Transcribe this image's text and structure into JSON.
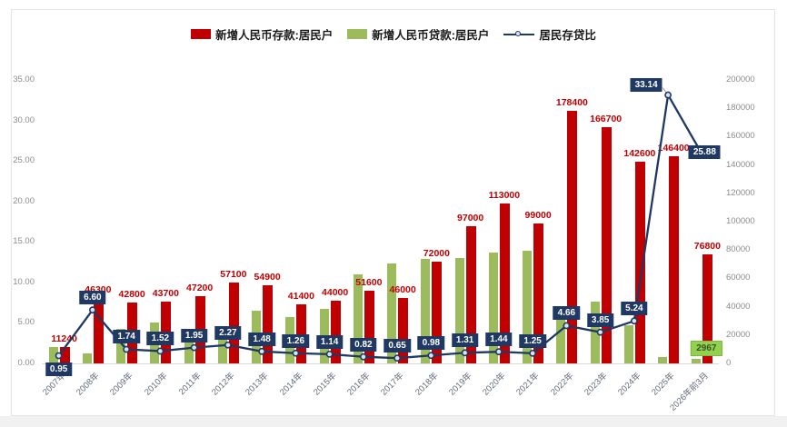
{
  "legend": {
    "deposits": "新增人民币存款:居民户",
    "loans": "新增人民币贷款:居民户",
    "ratio": "居民存贷比"
  },
  "colors": {
    "deposit_bar": "#C00000",
    "loan_bar": "#9CBB5C",
    "ratio_line": "#1F3864",
    "ratio_label_bg": "#1F3864",
    "ratio_label_text": "#FFFFFF",
    "deposit_label_text": "#C00000",
    "loan_label_bg": "#92D050",
    "loan_label_text": "#375623"
  },
  "chart_data": {
    "type": "bar+line combo",
    "legend_position": "top",
    "grid": false,
    "categories": [
      "2007年",
      "2008年",
      "2009年",
      "2010年",
      "2011年",
      "2012年",
      "2013年",
      "2014年",
      "2015年",
      "2016年",
      "2017年",
      "2018年",
      "2019年",
      "2020年",
      "2021年",
      "2022年",
      "2023年",
      "2024年",
      "2025年",
      "2026年前3月"
    ],
    "series": [
      {
        "name": "新增人民币存款:居民户",
        "type": "bar",
        "axis": "right",
        "color": "#C00000",
        "values": [
          11240,
          46300,
          42800,
          43700,
          47200,
          57100,
          54900,
          41400,
          44000,
          51600,
          46000,
          72000,
          97000,
          113000,
          99000,
          178400,
          166700,
          142600,
          146400,
          76800
        ],
        "labels": [
          "11240",
          "46300",
          "42800",
          "43700",
          "47200",
          "57100",
          "54900",
          "41400",
          "44000",
          "51600",
          "46000",
          "72000",
          "97000",
          "113000",
          "99000",
          "178400",
          "166700",
          "142600",
          "146400",
          "76800"
        ]
      },
      {
        "name": "新增人民币贷款:居民户",
        "type": "bar",
        "axis": "right",
        "color": "#9CBB5C",
        "values": [
          11830,
          7015,
          24600,
          28750,
          24200,
          25150,
          37100,
          32860,
          38600,
          62930,
          70770,
          73470,
          74050,
          78470,
          79200,
          38280,
          43300,
          27210,
          4420,
          2967
        ],
        "labels": [
          "",
          "",
          "",
          "",
          "",
          "",
          "",
          "",
          "",
          "",
          "",
          "",
          "",
          "",
          "",
          "",
          "",
          "",
          "",
          "2967"
        ]
      },
      {
        "name": "居民存贷比",
        "type": "line",
        "axis": "left",
        "color": "#1F3864",
        "values": [
          0.95,
          6.6,
          1.74,
          1.52,
          1.95,
          2.27,
          1.48,
          1.26,
          1.14,
          0.82,
          0.65,
          0.98,
          1.31,
          1.44,
          1.25,
          4.66,
          3.85,
          5.24,
          33.14,
          25.88
        ],
        "labels": [
          "0.95",
          "6.60",
          "1.74",
          "1.52",
          "1.95",
          "2.27",
          "1.48",
          "1.26",
          "1.14",
          "0.82",
          "0.65",
          "0.98",
          "1.31",
          "1.44",
          "1.25",
          "4.66",
          "3.85",
          "5.24",
          "33.14",
          "25.88"
        ]
      }
    ],
    "left_axis": {
      "min": 0,
      "max": 35,
      "tick_labels": [
        "0.00",
        "5.00",
        "10.00",
        "15.00",
        "20.00",
        "25.00",
        "30.00",
        "35.00"
      ]
    },
    "right_axis": {
      "min": 0,
      "max": 200000,
      "tick_labels": [
        "0",
        "20000",
        "40000",
        "60000",
        "80000",
        "100000",
        "120000",
        "140000",
        "160000",
        "180000",
        "200000"
      ]
    }
  }
}
